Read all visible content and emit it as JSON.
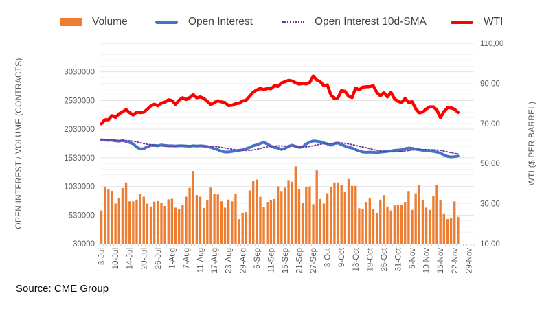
{
  "page": {
    "background": "#FFFFFF"
  },
  "source_note": "Source: CME Group",
  "chart_data": {
    "type": "combo-bar-line",
    "title": "",
    "legend_position": "top",
    "grid": {
      "major_color": "#E2E2E2",
      "minor_color": "#F3F3F3",
      "axis_line_color": "#BFBFBF",
      "minor_step": 100000,
      "major_step": 500000
    },
    "left_axis": {
      "title": "OPEN INTEREST / VOLUME (CONTRACTS)",
      "min": 30000,
      "max": 3530000,
      "ticks": [
        30000,
        530000,
        1030000,
        1530000,
        2030000,
        2530000,
        3030000
      ]
    },
    "right_axis": {
      "title": "WTI ($ PER BARREL)",
      "min": 10,
      "max": 110,
      "tick_values": [
        10,
        30,
        50,
        70,
        90,
        110
      ],
      "tick_labels": [
        "10,00",
        "30,00",
        "50,00",
        "70,00",
        "90,00",
        "110,00"
      ]
    },
    "x_total_slots": 106,
    "x_tick_step": 4,
    "x_tick_labels": [
      "3-Jul",
      "10-Jul",
      "14-Jul",
      "20-Jul",
      "26-Jul",
      "1-Aug",
      "7-Aug",
      "11-Aug",
      "17-Aug",
      "23-Aug",
      "29-Aug",
      "5-Sep",
      "11-Sep",
      "15-Sep",
      "21-Sep",
      "27-Sep",
      "3-Oct",
      "9-Oct",
      "13-Oct",
      "19-Oct",
      "25-Oct",
      "31-Oct",
      "6-Nov",
      "10-Nov",
      "16-Nov",
      "22-Nov",
      "29-Nov"
    ],
    "x": [
      "3-Jul",
      "5-Jul",
      "6-Jul",
      "7-Jul",
      "10-Jul",
      "11-Jul",
      "12-Jul",
      "13-Jul",
      "14-Jul",
      "17-Jul",
      "18-Jul",
      "19-Jul",
      "20-Jul",
      "21-Jul",
      "24-Jul",
      "25-Jul",
      "26-Jul",
      "27-Jul",
      "28-Jul",
      "31-Jul",
      "1-Aug",
      "2-Aug",
      "3-Aug",
      "4-Aug",
      "7-Aug",
      "8-Aug",
      "9-Aug",
      "10-Aug",
      "11-Aug",
      "14-Aug",
      "15-Aug",
      "16-Aug",
      "17-Aug",
      "18-Aug",
      "21-Aug",
      "22-Aug",
      "23-Aug",
      "24-Aug",
      "25-Aug",
      "28-Aug",
      "29-Aug",
      "30-Aug",
      "31-Aug",
      "1-Sep",
      "5-Sep",
      "6-Sep",
      "7-Sep",
      "8-Sep",
      "11-Sep",
      "12-Sep",
      "13-Sep",
      "14-Sep",
      "15-Sep",
      "18-Sep",
      "19-Sep",
      "20-Sep",
      "21-Sep",
      "22-Sep",
      "25-Sep",
      "26-Sep",
      "27-Sep",
      "28-Sep",
      "29-Sep",
      "2-Oct",
      "3-Oct",
      "4-Oct",
      "5-Oct",
      "6-Oct",
      "9-Oct",
      "10-Oct",
      "11-Oct",
      "12-Oct",
      "13-Oct",
      "16-Oct",
      "17-Oct",
      "18-Oct",
      "19-Oct",
      "20-Oct",
      "23-Oct",
      "24-Oct",
      "25-Oct",
      "26-Oct",
      "27-Oct",
      "30-Oct",
      "31-Oct",
      "1-Nov",
      "2-Nov",
      "3-Nov",
      "6-Nov",
      "7-Nov",
      "8-Nov",
      "9-Nov",
      "10-Nov",
      "13-Nov",
      "14-Nov",
      "15-Nov",
      "16-Nov",
      "17-Nov",
      "20-Nov",
      "21-Nov",
      "22-Nov",
      "24-Nov"
    ],
    "series": [
      {
        "name": "Volume",
        "type": "bar",
        "axis": "left",
        "color": "#ED7D31",
        "values": [
          610000,
          1020000,
          980000,
          955000,
          730000,
          820000,
          1000000,
          1100000,
          770000,
          770000,
          800000,
          900000,
          850000,
          730000,
          680000,
          765000,
          775000,
          750000,
          690000,
          805000,
          815000,
          660000,
          640000,
          710000,
          850000,
          1005000,
          1300000,
          880000,
          850000,
          655000,
          790000,
          1010000,
          900000,
          890000,
          770000,
          660000,
          800000,
          770000,
          895000,
          460000,
          570000,
          580000,
          960000,
          1120000,
          1150000,
          850000,
          670000,
          760000,
          790000,
          810000,
          1030000,
          950000,
          1010000,
          1140000,
          1110000,
          1380000,
          990000,
          750000,
          1020000,
          1030000,
          720000,
          1310000,
          810000,
          730000,
          910000,
          1020000,
          1100000,
          1100000,
          1060000,
          940000,
          1160000,
          1040000,
          1040000,
          650000,
          640000,
          760000,
          820000,
          640000,
          570000,
          800000,
          880000,
          680000,
          610000,
          700000,
          710000,
          710000,
          760000,
          950000,
          620000,
          910000,
          1050000,
          790000,
          660000,
          620000,
          860000,
          1050000,
          790000,
          560000,
          460000,
          480000,
          770000,
          500000
        ]
      },
      {
        "name": "Open Interest",
        "type": "line",
        "axis": "left",
        "color": "#4472C4",
        "stroke_width": 4,
        "values": [
          1845000,
          1840000,
          1835000,
          1838000,
          1825000,
          1820000,
          1830000,
          1815000,
          1795000,
          1775000,
          1715000,
          1685000,
          1690000,
          1720000,
          1745000,
          1745000,
          1740000,
          1755000,
          1745000,
          1740000,
          1740000,
          1735000,
          1740000,
          1740000,
          1735000,
          1730000,
          1740000,
          1735000,
          1740000,
          1735000,
          1725000,
          1710000,
          1690000,
          1670000,
          1645000,
          1630000,
          1630000,
          1640000,
          1650000,
          1660000,
          1670000,
          1690000,
          1710000,
          1740000,
          1755000,
          1780000,
          1800000,
          1770000,
          1735000,
          1710000,
          1700000,
          1675000,
          1695000,
          1730000,
          1750000,
          1730000,
          1712000,
          1720000,
          1770000,
          1805000,
          1825000,
          1820000,
          1810000,
          1790000,
          1772000,
          1750000,
          1780000,
          1788000,
          1760000,
          1735000,
          1712000,
          1700000,
          1672000,
          1650000,
          1630000,
          1625000,
          1628000,
          1625000,
          1620000,
          1628000,
          1635000,
          1640000,
          1650000,
          1660000,
          1665000,
          1670000,
          1690000,
          1700000,
          1695000,
          1680000,
          1670000,
          1660000,
          1655000,
          1650000,
          1640000,
          1630000,
          1610000,
          1580000,
          1555000,
          1545000,
          1550000,
          1560000
        ]
      },
      {
        "name": "Open Interest 10d-SMA",
        "type": "line-dotted",
        "axis": "left",
        "color": "#7030A0",
        "stroke_width": 1.8,
        "derived": {
          "function": "trailing_sma",
          "window": 10,
          "source_series": "Open Interest"
        }
      },
      {
        "name": "WTI",
        "type": "line",
        "axis": "right",
        "color": "#FF0000",
        "stroke_width": 4.5,
        "values": [
          69.8,
          71.8,
          71.8,
          73.9,
          73.0,
          74.8,
          75.8,
          76.9,
          75.4,
          74.2,
          75.7,
          75.4,
          75.6,
          77.1,
          78.7,
          79.6,
          78.8,
          80.1,
          80.6,
          81.8,
          81.4,
          79.5,
          81.6,
          82.8,
          81.9,
          82.9,
          84.4,
          82.8,
          83.2,
          82.5,
          81.0,
          79.4,
          80.4,
          81.3,
          80.7,
          80.4,
          78.9,
          79.1,
          79.8,
          80.1,
          81.2,
          81.6,
          83.6,
          85.6,
          86.7,
          87.5,
          86.9,
          87.5,
          87.3,
          88.8,
          88.5,
          90.2,
          90.8,
          91.5,
          91.2,
          90.3,
          89.6,
          90.0,
          89.7,
          90.4,
          93.7,
          91.7,
          90.8,
          88.8,
          89.2,
          84.2,
          82.3,
          82.8,
          86.4,
          86.0,
          83.5,
          82.9,
          87.7,
          86.7,
          88.1,
          88.3,
          88.4,
          88.8,
          85.5,
          83.7,
          85.4,
          83.2,
          85.5,
          82.3,
          81.0,
          80.4,
          82.5,
          80.5,
          80.8,
          77.4,
          75.3,
          75.7,
          77.2,
          78.3,
          78.3,
          76.7,
          72.9,
          75.9,
          77.8,
          77.8,
          77.1,
          75.5
        ]
      }
    ]
  }
}
